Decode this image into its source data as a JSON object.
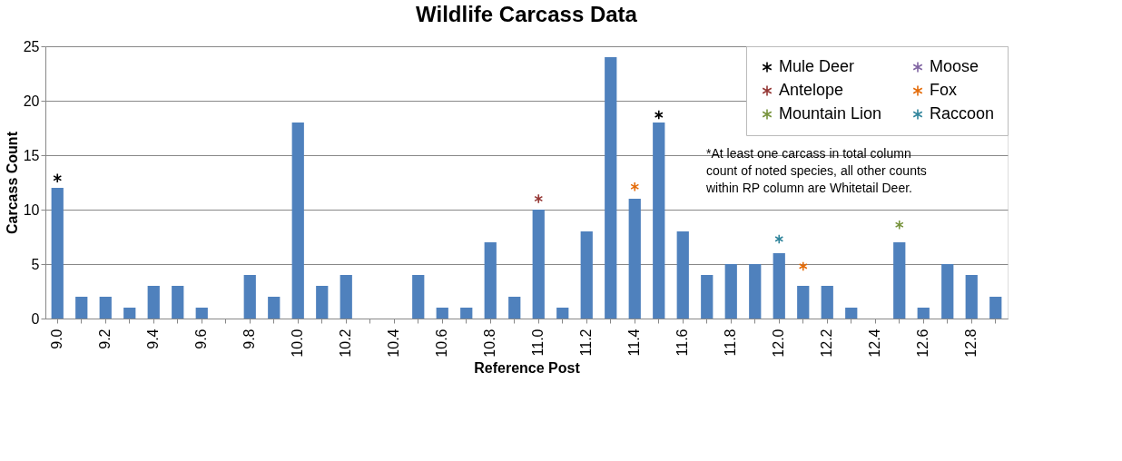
{
  "chart_data": {
    "type": "bar",
    "title": "Wildlife Carcass Data",
    "xlabel": "Reference Post",
    "ylabel": "Carcass Count",
    "categories": [
      "9.0",
      null,
      "9.2",
      null,
      "9.4",
      null,
      "9.6",
      null,
      "9.8",
      null,
      "10.0",
      null,
      "10.2",
      null,
      "10.4",
      null,
      "10.6",
      null,
      "10.8",
      null,
      "11.0",
      null,
      "11.2",
      null,
      "11.4",
      null,
      "11.6",
      null,
      "11.8",
      null,
      "12.0",
      null,
      "12.2",
      null,
      "12.4",
      null,
      "12.6",
      null,
      "12.8",
      null
    ],
    "series": [
      {
        "color": "#4f81bd",
        "values": [
          12,
          2,
          2,
          1,
          3,
          3,
          1,
          0,
          4,
          2,
          18,
          3,
          4,
          0,
          0,
          4,
          1,
          1,
          7,
          2,
          10,
          1,
          8,
          24,
          11,
          18,
          8,
          4,
          5,
          5,
          6,
          3,
          3,
          1,
          0,
          7,
          1,
          5,
          4,
          2
        ]
      },
      {
        "type": "scatter",
        "name": "Mule Deer",
        "color": "#000000",
        "values": [
          12.9,
          null,
          null,
          null,
          null,
          null,
          null,
          null,
          null,
          null,
          null,
          null,
          null,
          null,
          null,
          null,
          null,
          null,
          null,
          null,
          null,
          null,
          null,
          null,
          null,
          18.7,
          null,
          null,
          null,
          null,
          null,
          null,
          null,
          null,
          null,
          null,
          null,
          null,
          null,
          null
        ]
      },
      {
        "type": "scatter",
        "name": "Antelope",
        "color": "#953735",
        "values": [
          null,
          null,
          null,
          null,
          null,
          null,
          null,
          null,
          null,
          null,
          null,
          null,
          null,
          null,
          null,
          null,
          null,
          null,
          null,
          null,
          11.0,
          null,
          null,
          null,
          null,
          null,
          null,
          null,
          null,
          null,
          null,
          null,
          null,
          null,
          null,
          null,
          null,
          null,
          null,
          null
        ]
      },
      {
        "type": "scatter",
        "name": "Mountain Lion",
        "color": "#77933c",
        "values": [
          null,
          null,
          null,
          null,
          null,
          null,
          null,
          null,
          null,
          null,
          null,
          null,
          null,
          null,
          null,
          null,
          null,
          null,
          null,
          null,
          null,
          null,
          null,
          null,
          null,
          null,
          null,
          null,
          null,
          null,
          null,
          null,
          null,
          null,
          null,
          8.6,
          null,
          null,
          null,
          null
        ]
      },
      {
        "type": "scatter",
        "name": "Moose",
        "color": "#8064a2",
        "values": [
          null,
          null,
          null,
          null,
          null,
          null,
          null,
          null,
          null,
          null,
          null,
          null,
          null,
          null,
          null,
          null,
          null,
          null,
          null,
          null,
          null,
          null,
          null,
          null,
          null,
          null,
          null,
          null,
          null,
          null,
          null,
          null,
          null,
          null,
          null,
          null,
          null,
          null,
          null,
          null
        ]
      },
      {
        "type": "scatter",
        "name": "Fox",
        "color": "#e46c0a",
        "values": [
          null,
          null,
          null,
          null,
          null,
          null,
          null,
          null,
          null,
          null,
          null,
          null,
          null,
          null,
          null,
          null,
          null,
          null,
          null,
          null,
          null,
          null,
          null,
          null,
          12.1,
          null,
          null,
          null,
          null,
          null,
          null,
          4.8,
          null,
          null,
          null,
          null,
          null,
          null,
          null,
          null
        ]
      },
      {
        "type": "scatter",
        "name": "Raccoon",
        "color": "#31859c",
        "values": [
          null,
          null,
          null,
          null,
          null,
          null,
          null,
          null,
          null,
          null,
          null,
          null,
          null,
          null,
          null,
          null,
          null,
          null,
          null,
          null,
          null,
          null,
          null,
          null,
          null,
          null,
          null,
          null,
          null,
          null,
          7.3,
          null,
          null,
          null,
          null,
          null,
          null,
          null,
          null,
          null
        ]
      }
    ],
    "ylim": [
      0,
      25
    ],
    "yticks": [
      0,
      5,
      10,
      15,
      20,
      25
    ],
    "grid": "y",
    "legend": "top right",
    "marker": "cross",
    "annotations": [
      "*At least one carcass in total column count of noted species, all other counts within RP column are Whitetail Deer."
    ]
  }
}
